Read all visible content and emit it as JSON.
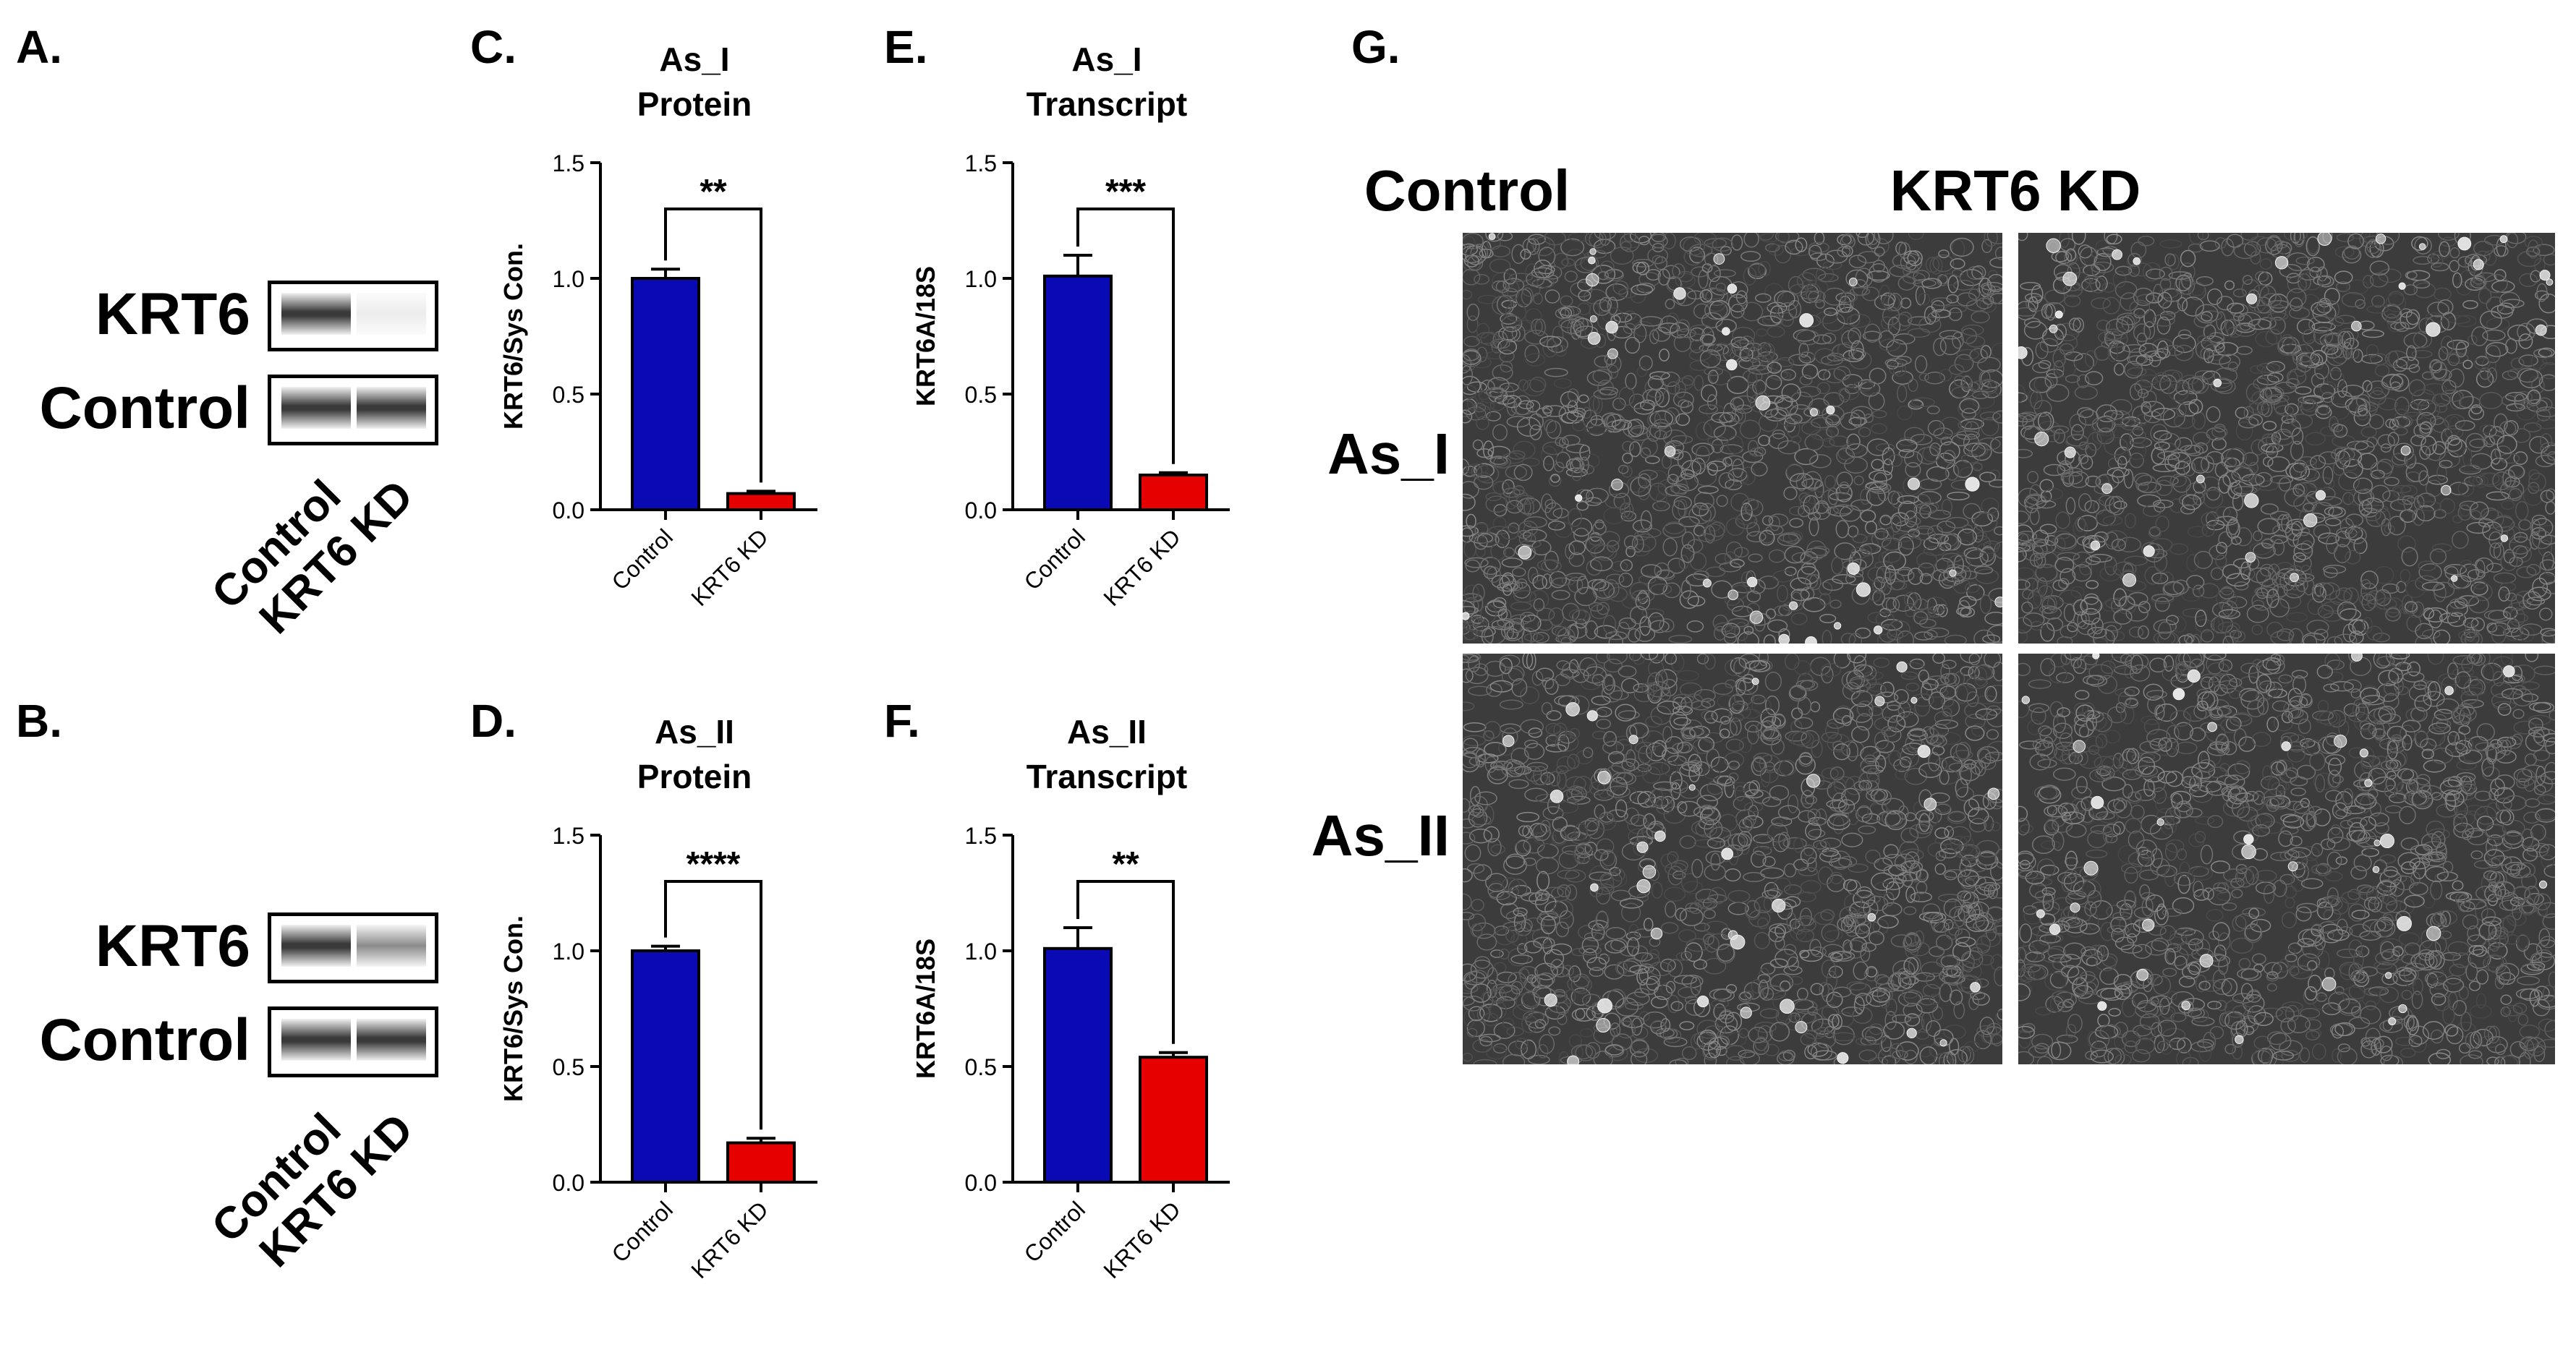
{
  "panels": {
    "A": "A.",
    "B": "B.",
    "C": "C.",
    "D": "D.",
    "E": "E.",
    "F": "F.",
    "G": "G."
  },
  "blots": {
    "A": {
      "rows": [
        "KRT6",
        "Control"
      ],
      "lanes": [
        "Control",
        "KRT6 KD"
      ]
    },
    "B": {
      "rows": [
        "KRT6",
        "Control"
      ],
      "lanes": [
        "Control",
        "KRT6 KD"
      ]
    }
  },
  "chart_data": [
    {
      "id": "C",
      "type": "bar",
      "title": "As_I\nProtein",
      "title_lines": [
        "As_I",
        "Protein"
      ],
      "categories": [
        "Control",
        "KRT6 KD"
      ],
      "values": [
        1.0,
        0.07
      ],
      "errors": [
        0.04,
        0.01
      ],
      "colors": [
        "#0a0ab4",
        "#e60000"
      ],
      "ylabel": "KRT6/Sys Con.",
      "ylim": [
        0,
        1.5
      ],
      "yticks": [
        "0.0",
        "0.5",
        "1.0",
        "1.5"
      ],
      "significance": "**"
    },
    {
      "id": "D",
      "type": "bar",
      "title": "As_II\nProtein",
      "title_lines": [
        "As_II",
        "Protein"
      ],
      "categories": [
        "Control",
        "KRT6 KD"
      ],
      "values": [
        1.0,
        0.17
      ],
      "errors": [
        0.02,
        0.02
      ],
      "colors": [
        "#0a0ab4",
        "#e60000"
      ],
      "ylabel": "KRT6/Sys Con.",
      "ylim": [
        0,
        1.5
      ],
      "yticks": [
        "0.0",
        "0.5",
        "1.0",
        "1.5"
      ],
      "significance": "****"
    },
    {
      "id": "E",
      "type": "bar",
      "title": "As_I\nTranscript",
      "title_lines": [
        "As_I",
        "Transcript"
      ],
      "categories": [
        "Control",
        "KRT6 KD"
      ],
      "values": [
        1.01,
        0.15
      ],
      "errors": [
        0.09,
        0.01
      ],
      "colors": [
        "#0a0ab4",
        "#e60000"
      ],
      "ylabel": "KRT6A/18S",
      "ylim": [
        0,
        1.5
      ],
      "yticks": [
        "0.0",
        "0.5",
        "1.0",
        "1.5"
      ],
      "significance": "***"
    },
    {
      "id": "F",
      "type": "bar",
      "title": "As_II\nTranscript",
      "title_lines": [
        "As_II",
        "Transcript"
      ],
      "categories": [
        "Control",
        "KRT6 KD"
      ],
      "values": [
        1.01,
        0.54
      ],
      "errors": [
        0.09,
        0.02
      ],
      "colors": [
        "#0a0ab4",
        "#e60000"
      ],
      "ylabel": "KRT6A/18S",
      "ylim": [
        0,
        1.5
      ],
      "yticks": [
        "0.0",
        "0.5",
        "1.0",
        "1.5"
      ],
      "significance": "**"
    }
  ],
  "micrographs": {
    "columns": [
      "Control",
      "KRT6 KD"
    ],
    "rows": [
      "As_I",
      "As_II"
    ]
  }
}
